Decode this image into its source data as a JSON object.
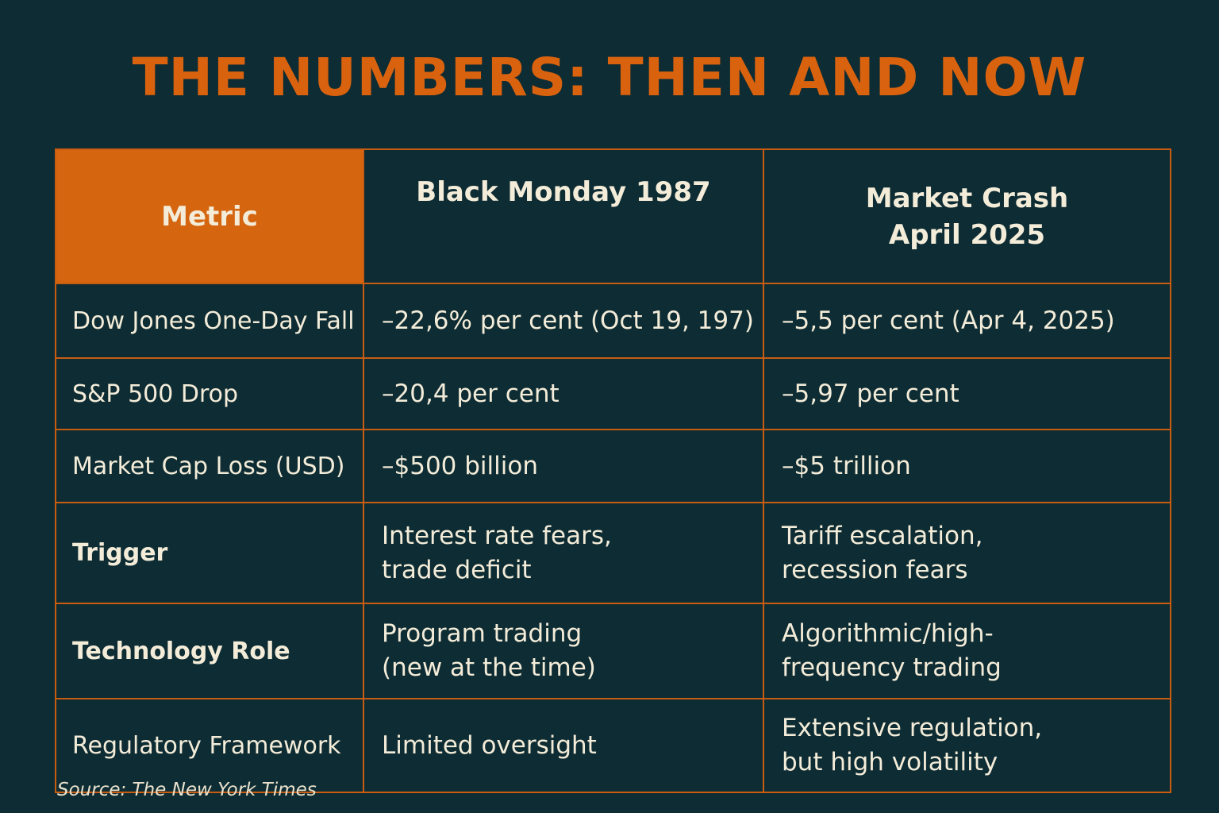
{
  "title": "THE NUMBERS: THEN AND NOW",
  "chart_data": {
    "type": "table",
    "columns": [
      "Metric",
      "Black Monday 1987",
      "Market Crash April 2025"
    ],
    "column_lines": {
      "metric": [
        "Metric"
      ],
      "then": [
        "Black Monday 1987"
      ],
      "now": [
        "Market Crash",
        "April 2025"
      ]
    },
    "rows": [
      {
        "metric": "Dow Jones One-Day Fall",
        "then": [
          "–22,6% per cent (Oct 19, 197)"
        ],
        "now": [
          "–5,5 per cent (Apr 4, 2025)"
        ]
      },
      {
        "metric": "S&P 500 Drop",
        "then": [
          "–20,4 per cent"
        ],
        "now": [
          "–5,97 per cent"
        ]
      },
      {
        "metric": "Market Cap Loss (USD)",
        "then": [
          "–$500 billion"
        ],
        "now": [
          "–$5 trillion"
        ]
      },
      {
        "metric": "Trigger",
        "then": [
          "Interest rate fears,",
          "trade deficit"
        ],
        "now": [
          "Tariff escalation,",
          "recession fears"
        ]
      },
      {
        "metric": "Technology Role",
        "then": [
          "Program trading",
          "(new at the time)"
        ],
        "now": [
          "Algorithmic/high-",
          "frequency trading"
        ]
      },
      {
        "metric": "Regulatory Framework",
        "then": [
          "Limited oversight"
        ],
        "now": [
          "Extensive regulation,",
          "but high volatility"
        ]
      }
    ]
  },
  "source": "Source: The New York Times",
  "colors": {
    "background": "#0e2c33",
    "accent": "#d5650f",
    "text": "#f3ecd9"
  }
}
